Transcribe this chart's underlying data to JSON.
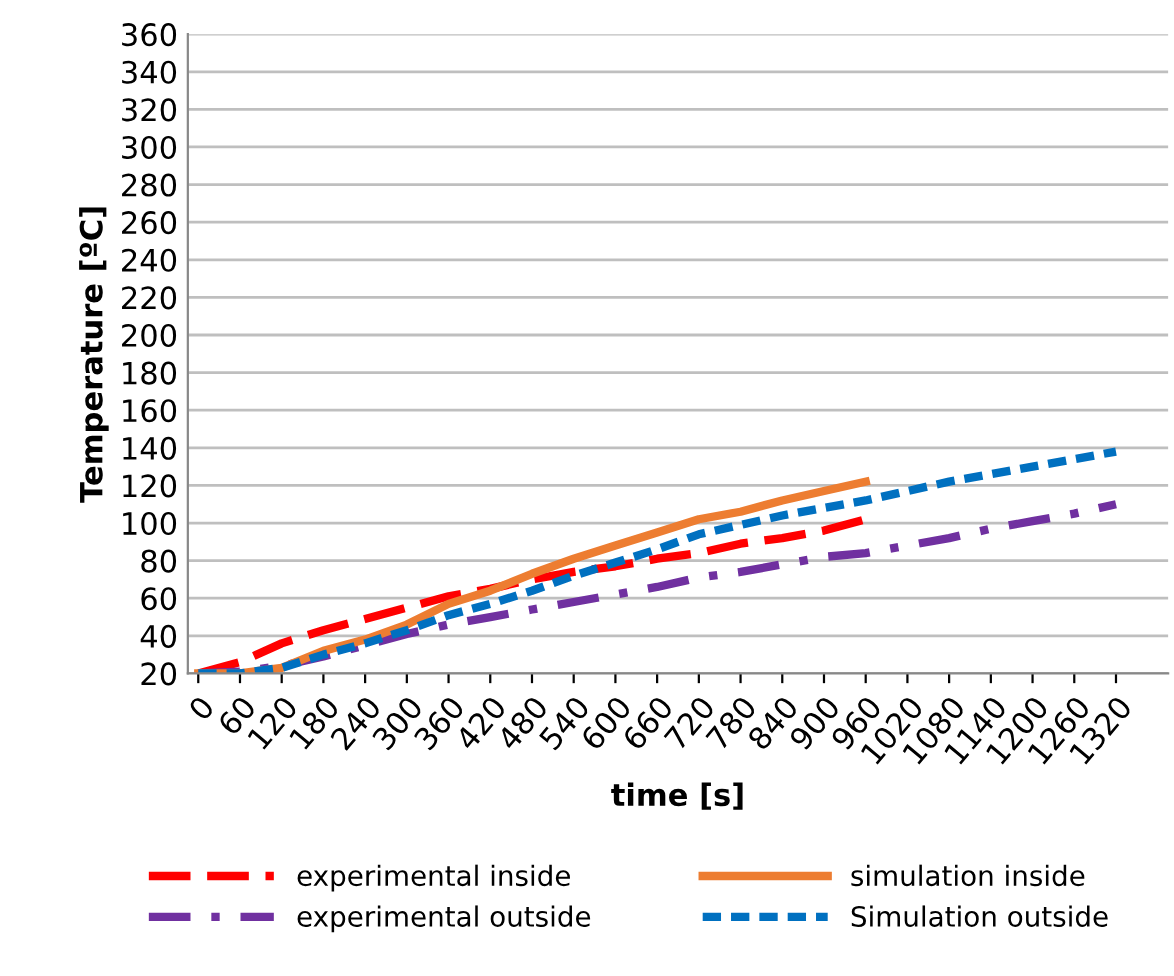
{
  "chart_data": {
    "type": "line",
    "xlabel": "time [s]",
    "ylabel": "Temperature [ºC]",
    "x": [
      0,
      60,
      120,
      180,
      240,
      300,
      360,
      420,
      480,
      540,
      600,
      660,
      720,
      780,
      840,
      900,
      960,
      1020,
      1080,
      1140,
      1200,
      1260,
      1320
    ],
    "xlim": [
      -15,
      1395
    ],
    "xticks": [
      0,
      60,
      120,
      180,
      240,
      300,
      360,
      420,
      480,
      540,
      600,
      660,
      720,
      780,
      840,
      900,
      960,
      1020,
      1080,
      1140,
      1200,
      1260,
      1320
    ],
    "ylim": [
      20,
      360
    ],
    "yticks": [
      20,
      40,
      60,
      80,
      100,
      120,
      140,
      160,
      180,
      200,
      220,
      240,
      260,
      280,
      300,
      320,
      340,
      360
    ],
    "grid": "y",
    "legend": "bottom",
    "series": [
      {
        "name": "experimental inside",
        "color": "#ff0000",
        "line_style": "dashed",
        "values": [
          20,
          26,
          36,
          43,
          49,
          55,
          61,
          65,
          70,
          74,
          77,
          81,
          84,
          89,
          92,
          96,
          102,
          null,
          null,
          null,
          null,
          null,
          null
        ]
      },
      {
        "name": "experimental outside",
        "color": "#7030a0",
        "line_style": "dashdot",
        "values": [
          20,
          21,
          24,
          29,
          35,
          41,
          46,
          50,
          54,
          58,
          62,
          66,
          71,
          74,
          78,
          82,
          84,
          88,
          92,
          97,
          101,
          105,
          110
        ]
      },
      {
        "name": "simulation inside",
        "color": "#ed7d31",
        "line_style": "solid",
        "values": [
          20,
          20,
          23,
          32,
          38,
          46,
          57,
          64,
          73,
          81,
          88,
          95,
          102,
          106,
          112,
          117,
          122,
          null,
          null,
          null,
          null,
          null,
          null
        ]
      },
      {
        "name": "Simulation outside",
        "color": "#0070c0",
        "line_style": "dotted",
        "values": [
          20,
          20,
          23,
          30,
          36,
          43,
          51,
          57,
          64,
          72,
          79,
          86,
          94,
          99,
          104,
          108,
          112,
          117,
          122,
          126,
          130,
          134,
          138
        ]
      }
    ]
  }
}
